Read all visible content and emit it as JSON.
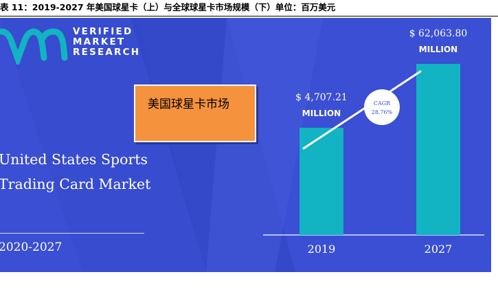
{
  "caption": "表 11：2019-2027 年美国球星卡（上）与全球球星卡市场规模（下）单位：百万美元",
  "logo": {
    "name": "vmr-logo-icon",
    "lines": [
      "VERIFIED",
      "MARKET",
      "RESEARCH"
    ]
  },
  "headline": {
    "line1": "United States Sports",
    "line2": "Trading Card Market"
  },
  "period": "2020-2027",
  "overlay_label": "美国球星卡市场",
  "colors": {
    "background": "#3a4fd3",
    "bar": "#12b3c2",
    "overlay": "#f5923e"
  },
  "chart_data": {
    "type": "bar",
    "categories": [
      "2019",
      "2027"
    ],
    "values": [
      4707.21,
      62063.8
    ],
    "value_labels": [
      [
        "$ 4,707.21",
        "MILLION"
      ],
      [
        "$ 62,063.80",
        "MILLION"
      ]
    ],
    "cagr": {
      "label": "CAGR",
      "value": "28.76%"
    },
    "xlabel": "",
    "ylabel": ""
  }
}
